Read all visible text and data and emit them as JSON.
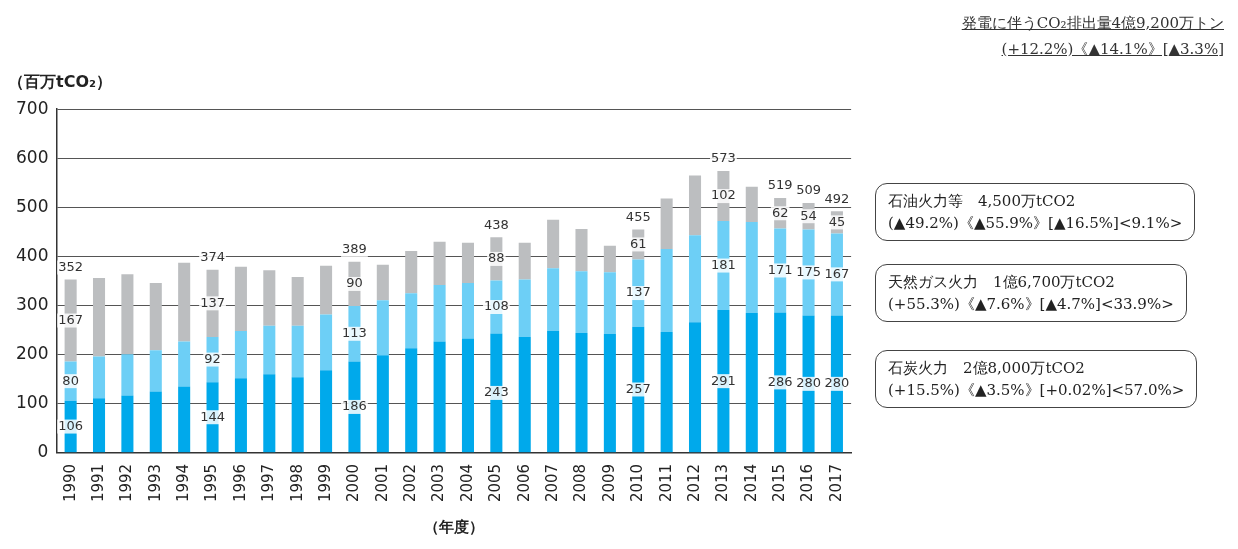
{
  "chart_data": {
    "type": "bar",
    "stacked": true,
    "title": "発電に伴うCO₂排出量4億9,200万トン",
    "subtitle": "(+12.2%)《▲14.1%》[▲3.3%]",
    "ylabel": "（百万tCO₂）",
    "xlabel": "（年度）",
    "categories": [
      "1990",
      "1991",
      "1992",
      "1993",
      "1994",
      "1995",
      "1996",
      "1997",
      "1998",
      "1999",
      "2000",
      "2001",
      "2002",
      "2003",
      "2004",
      "2005",
      "2006",
      "2007",
      "2008",
      "2009",
      "2010",
      "2011",
      "2012",
      "2013",
      "2014",
      "2015",
      "2016",
      "2017"
    ],
    "series": [
      {
        "color": "#00a9eb",
        "values": [
          106,
          111,
          117,
          125,
          135,
          144,
          152,
          160,
          154,
          168,
          186,
          199,
          213,
          227,
          233,
          243,
          236,
          248,
          244,
          242,
          257,
          246,
          266,
          291,
          285,
          286,
          280,
          280
        ],
        "value_labels": [
          "106",
          null,
          null,
          null,
          null,
          "144",
          null,
          null,
          null,
          null,
          "186",
          null,
          null,
          null,
          null,
          "243",
          null,
          null,
          null,
          null,
          "257",
          null,
          null,
          "291",
          null,
          "286",
          "280",
          "280"
        ]
      },
      {
        "color": "#6dcff6",
        "values": [
          80,
          85,
          84,
          84,
          92,
          92,
          96,
          99,
          105,
          114,
          113,
          112,
          112,
          115,
          113,
          108,
          117,
          128,
          126,
          126,
          137,
          169,
          177,
          181,
          185,
          171,
          175,
          167
        ],
        "value_labels": [
          "80",
          null,
          null,
          null,
          null,
          "92",
          null,
          null,
          null,
          null,
          "113",
          null,
          null,
          null,
          null,
          "108",
          null,
          null,
          null,
          null,
          "137",
          null,
          null,
          "181",
          null,
          "171",
          "175",
          "167"
        ]
      },
      {
        "color": "#bcbec0",
        "values": [
          167,
          160,
          163,
          137,
          160,
          137,
          131,
          113,
          99,
          99,
          90,
          72,
          86,
          88,
          82,
          88,
          75,
          99,
          86,
          54,
          61,
          103,
          122,
          102,
          72,
          62,
          54,
          45
        ],
        "value_labels": [
          "167",
          null,
          null,
          null,
          null,
          "137",
          null,
          null,
          null,
          null,
          "90",
          null,
          null,
          null,
          null,
          "88",
          null,
          null,
          null,
          null,
          "61",
          null,
          null,
          "102",
          null,
          "62",
          "54",
          "45"
        ]
      }
    ],
    "totals": [
      "352",
      null,
      null,
      null,
      null,
      "374",
      null,
      null,
      null,
      null,
      "389",
      null,
      null,
      null,
      null,
      "438",
      null,
      null,
      null,
      null,
      "455",
      null,
      null,
      "573",
      null,
      "519",
      "509",
      "492"
    ],
    "ylim": [
      0,
      700
    ],
    "yticks": [
      0,
      100,
      200,
      300,
      400,
      500,
      600,
      700
    ],
    "grid": "y",
    "legend": false,
    "annotations": [
      "石油火力等　4,500万tCO2\n(▲49.2%)《▲55.9%》[▲16.5%]<9.1%>",
      "天然ガス火力　1億6,700万tCO2\n(+55.3%)《▲7.6%》[▲4.7%]<33.9%>",
      "石炭火力　2億8,000万tCO2\n(+15.5%)《▲3.5%》[+0.02%]<57.0%>"
    ]
  }
}
